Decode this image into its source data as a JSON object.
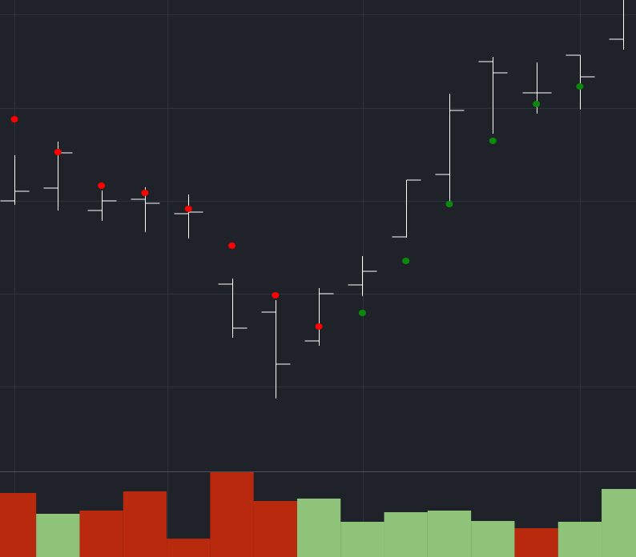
{
  "chart_data": {
    "type": "ohlc",
    "open": [
      339,
      355,
      327,
      341,
      323,
      235,
      200,
      164,
      234,
      294,
      372,
      513,
      474,
      521,
      541
    ],
    "high": [
      396,
      413,
      352,
      356,
      347,
      242,
      215,
      230,
      270,
      365,
      473,
      519,
      512,
      521,
      590
    ],
    "low": [
      334,
      327,
      314,
      300,
      292,
      168,
      92,
      158,
      220,
      293,
      335,
      423,
      448,
      453,
      528
    ],
    "close": [
      351,
      399,
      339,
      336,
      325,
      180,
      135,
      223,
      251,
      365,
      452,
      499,
      474,
      494,
      null
    ],
    "bar_color": "#ffffff",
    "ylim": [
      0,
      590
    ],
    "yticks": [
      107,
      223,
      339,
      455,
      572
    ],
    "grid": true,
    "sar": {
      "values": [
        441,
        400,
        358,
        349,
        329,
        283,
        221,
        182,
        199,
        264,
        335,
        414,
        460,
        482,
        null
      ],
      "colors": [
        "#ff0000",
        "#ff0000",
        "#ff0000",
        "#ff0000",
        "#ff0000",
        "#ff0000",
        "#ff0000",
        "#ff0000",
        "#0a8a0a",
        "#0a8a0a",
        "#0a8a0a",
        "#0a8a0a",
        "#0a8a0a",
        "#0a8a0a",
        null
      ]
    },
    "volume": {
      "type": "bar",
      "values": [
        80,
        54,
        58,
        82,
        23,
        106,
        70,
        73,
        44,
        56,
        58,
        45,
        36,
        44,
        85
      ],
      "colors": [
        "#b9290e",
        "#8fc37a",
        "#b9290e",
        "#b9290e",
        "#b9290e",
        "#b9290e",
        "#b9290e",
        "#8fc37a",
        "#8fc37a",
        "#8fc37a",
        "#8fc37a",
        "#8fc37a",
        "#b9290e",
        "#8fc37a",
        "#8fc37a"
      ],
      "ylim": [
        0,
        106
      ]
    }
  }
}
